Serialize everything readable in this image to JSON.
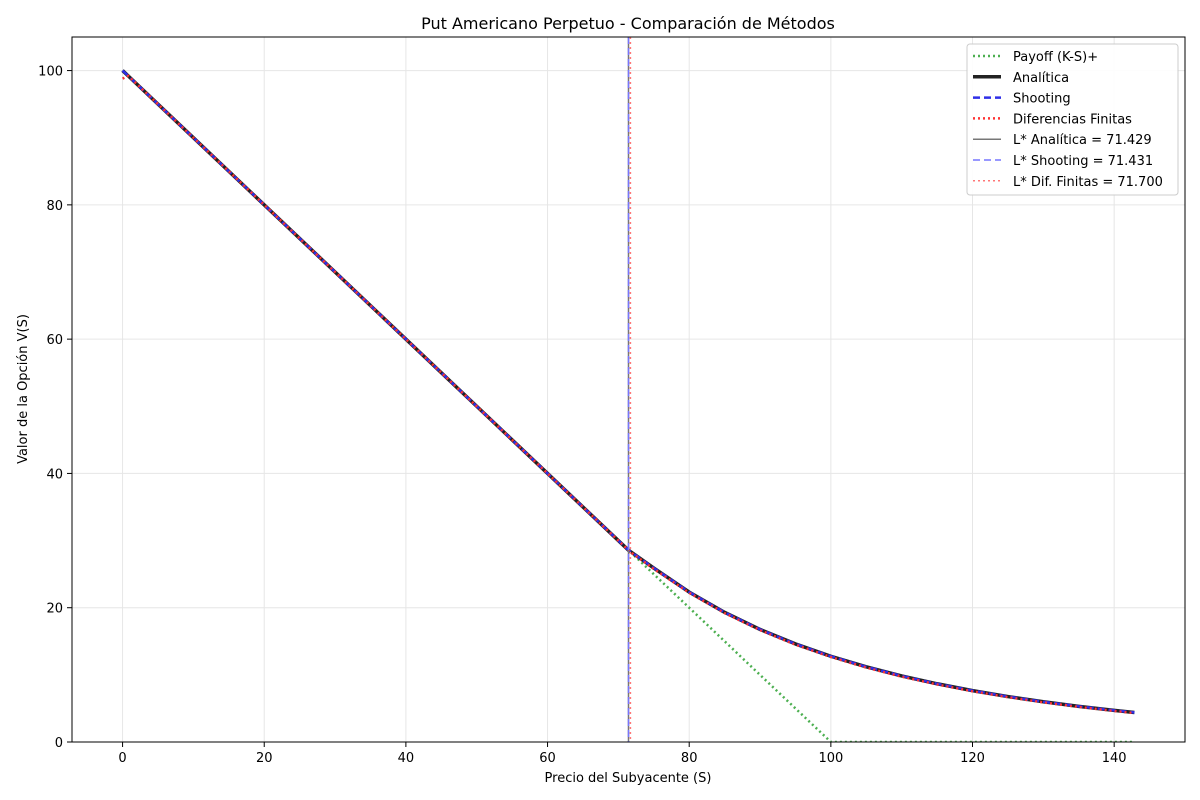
{
  "chart_data": {
    "type": "line",
    "title": "Put Americano Perpetuo - Comparación de Métodos",
    "xlabel": "Precio del Subyacente (S)",
    "ylabel": "Valor de la Opción V(S)",
    "xlim": [
      -7.14,
      150
    ],
    "ylim": [
      0,
      105
    ],
    "xticks": [
      0,
      20,
      40,
      60,
      80,
      100,
      120,
      140
    ],
    "yticks": [
      0,
      20,
      40,
      60,
      80,
      100
    ],
    "grid": true,
    "legend_position": "top-right",
    "series": [
      {
        "name": "Payoff (K-S)+",
        "color": "#4caf50",
        "style": "dotted",
        "x": [
          0,
          100,
          142.86
        ],
        "y": [
          100,
          0,
          0
        ]
      },
      {
        "name": "Analítica",
        "color": "#222222",
        "style": "solid",
        "x": [
          0,
          71.429,
          75,
          80,
          85,
          90,
          95,
          100,
          105,
          110,
          115,
          120,
          125,
          130,
          135,
          140,
          142.86
        ],
        "y": [
          100,
          28.571,
          25.914,
          22.326,
          19.31,
          16.766,
          14.609,
          12.771,
          11.197,
          9.842,
          8.671,
          7.654,
          6.768,
          5.993,
          5.313,
          4.716,
          4.401
        ]
      },
      {
        "name": "Shooting",
        "color": "#2f2fe8",
        "style": "dashed",
        "x": [
          0,
          71.431,
          75,
          80,
          85,
          90,
          95,
          100,
          105,
          110,
          115,
          120,
          125,
          130,
          135,
          140,
          142.86
        ],
        "y": [
          100,
          28.569,
          25.914,
          22.326,
          19.31,
          16.766,
          14.609,
          12.771,
          11.197,
          9.842,
          8.671,
          7.654,
          6.768,
          5.993,
          5.313,
          4.716,
          4.401
        ]
      },
      {
        "name": "Diferencias Finitas",
        "color": "#ff3333",
        "style": "dotted",
        "x": [
          0,
          0.8,
          71.7,
          75,
          80,
          85,
          90,
          95,
          100,
          105,
          110,
          115,
          120,
          125,
          130,
          135,
          140,
          142.86
        ],
        "y": [
          98.8,
          99.2,
          28.3,
          25.78,
          22.22,
          19.2,
          16.65,
          14.49,
          12.65,
          11.08,
          9.73,
          8.56,
          7.55,
          6.67,
          5.9,
          5.22,
          4.62,
          4.3
        ]
      }
    ],
    "vlines": [
      {
        "name": "L* Analítica = 71.429",
        "x": 71.429,
        "color": "#777777",
        "style": "solid"
      },
      {
        "name": "L* Shooting = 71.431",
        "x": 71.431,
        "color": "#7777ff",
        "style": "dashed"
      },
      {
        "name": "L* Dif. Finitas = 71.700",
        "x": 71.7,
        "color": "#ff7777",
        "style": "dotted"
      }
    ]
  }
}
